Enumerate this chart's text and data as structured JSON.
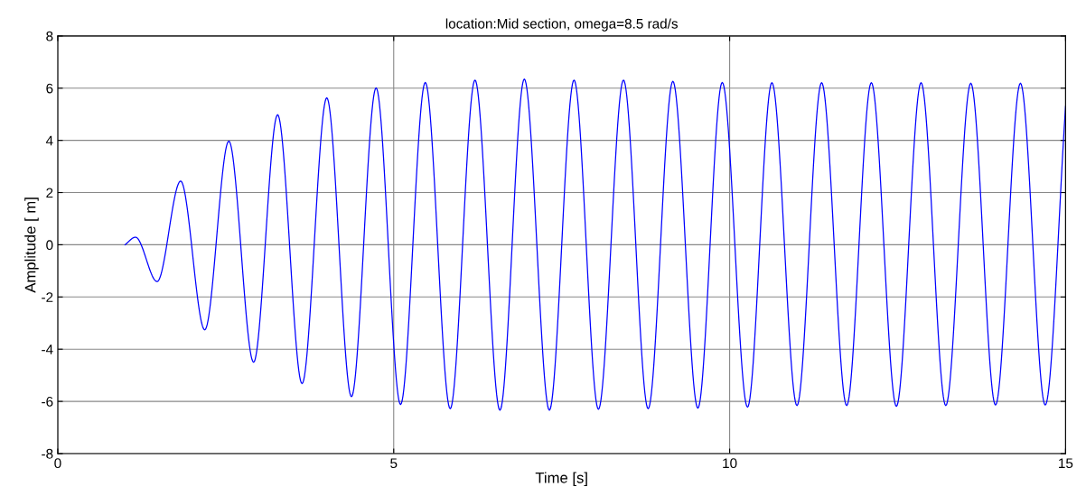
{
  "chart_data": {
    "type": "line",
    "title": "location:Mid section, omega=8.5 rad/s",
    "xlabel": "Time [s]",
    "ylabel": "Amplitude [ m]",
    "xlim": [
      0,
      15
    ],
    "xticks": [
      0,
      5,
      10,
      15
    ],
    "ylim": [
      -8,
      8
    ],
    "yticks": [
      -8,
      -6,
      -4,
      -2,
      0,
      2,
      4,
      6,
      8
    ],
    "grid": true,
    "marker": "none",
    "line_style": "solid",
    "series": [
      {
        "color": "#0000ff",
        "x": [
          1.0,
          1.157,
          1.479,
          1.829,
          2.188,
          2.546,
          2.915,
          3.272,
          3.636,
          4.004,
          4.371,
          4.738,
          5.102,
          5.47,
          5.841,
          6.21,
          6.581,
          6.944,
          7.317,
          7.684,
          8.047,
          8.42,
          8.787,
          9.155,
          9.527,
          9.89,
          10.266,
          10.629,
          11.002,
          11.369,
          11.742,
          12.109,
          12.482,
          12.849,
          13.217,
          13.589,
          13.957,
          14.328,
          14.697,
          15.0
        ],
        "values": [
          0,
          0.29,
          -1.41,
          2.44,
          -3.26,
          3.97,
          -4.5,
          4.98,
          -5.32,
          5.63,
          -5.82,
          6.01,
          -6.12,
          6.22,
          -6.28,
          6.31,
          -6.34,
          6.35,
          -6.34,
          6.31,
          -6.3,
          6.31,
          -6.28,
          6.26,
          -6.26,
          6.22,
          -6.22,
          6.21,
          -6.16,
          6.21,
          -6.16,
          6.21,
          -6.19,
          6.21,
          -6.16,
          6.19,
          -6.14,
          6.19,
          -6.14,
          5.3
        ]
      }
    ]
  }
}
